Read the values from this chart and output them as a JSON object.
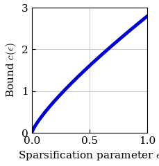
{
  "xlabel": "Sparsification parameter $\\epsilon$",
  "ylabel": "Bound $c(\\epsilon)$",
  "xlim": [
    0,
    1
  ],
  "ylim": [
    0,
    3
  ],
  "xticks": [
    0,
    0.5,
    1
  ],
  "yticks": [
    0,
    1,
    2,
    3
  ],
  "line_color": "#0000CC",
  "line_width": 3.5,
  "grid_color": "#cccccc",
  "background_color": "#ffffff",
  "xlabel_fontsize": 11,
  "ylabel_fontsize": 11,
  "tick_fontsize": 11
}
